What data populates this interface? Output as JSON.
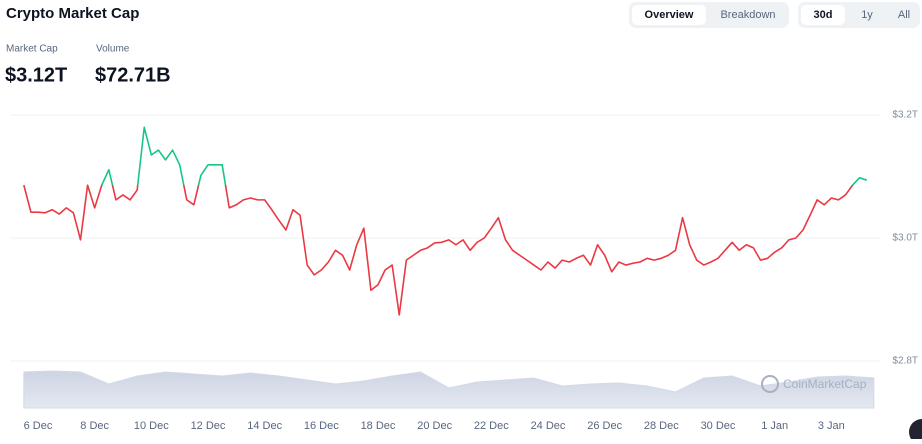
{
  "header": {
    "title": "Crypto Market Cap",
    "tabs": [
      "Overview",
      "Breakdown"
    ],
    "ranges": [
      "30d",
      "1y",
      "All"
    ],
    "stats": [
      {
        "label": "Market Cap",
        "value": "$3.12T"
      },
      {
        "label": "Volume",
        "value": "$72.71B"
      }
    ],
    "watermark": "CoinMarketCap"
  },
  "chart_data": {
    "type": "line",
    "x": [
      5.5,
      5.75,
      6,
      6.25,
      6.5,
      6.75,
      7,
      7.25,
      7.5,
      7.75,
      8,
      8.25,
      8.5,
      8.75,
      9,
      9.25,
      9.5,
      9.75,
      10,
      10.25,
      10.5,
      10.75,
      11,
      11.25,
      11.5,
      11.75,
      12,
      12.25,
      12.5,
      12.75,
      13,
      13.25,
      13.5,
      13.75,
      14,
      14.25,
      14.5,
      14.75,
      15,
      15.25,
      15.5,
      15.75,
      16,
      16.25,
      16.5,
      16.75,
      17,
      17.25,
      17.5,
      17.75,
      18,
      18.25,
      18.5,
      18.75,
      19,
      19.25,
      19.5,
      19.75,
      20,
      20.25,
      20.5,
      20.75,
      21,
      21.25,
      21.5,
      21.75,
      22,
      22.25,
      22.5,
      22.75,
      23,
      23.25,
      23.5,
      23.75,
      24,
      24.25,
      24.5,
      24.75,
      25,
      25.25,
      25.5,
      25.75,
      26,
      26.25,
      26.5,
      26.75,
      27,
      27.25,
      27.5,
      27.75,
      28,
      28.25,
      28.5,
      28.75,
      29,
      29.25,
      29.5,
      29.75,
      30,
      30.25,
      30.5,
      30.75,
      31,
      31.25,
      31.5,
      31.75,
      32,
      32.25,
      32.5,
      32.75,
      33,
      33.25,
      33.5,
      33.75,
      34,
      34.25,
      34.5,
      34.75,
      35,
      35.25
    ],
    "values": [
      3.086,
      3.042,
      3.042,
      3.041,
      3.046,
      3.039,
      3.049,
      3.041,
      2.997,
      3.086,
      3.049,
      3.086,
      3.111,
      3.062,
      3.07,
      3.062,
      3.078,
      3.18,
      3.135,
      3.143,
      3.127,
      3.143,
      3.119,
      3.062,
      3.054,
      3.102,
      3.119,
      3.119,
      3.119,
      3.049,
      3.054,
      3.062,
      3.065,
      3.062,
      3.062,
      3.046,
      3.029,
      3.013,
      3.046,
      3.037,
      2.956,
      2.94,
      2.948,
      2.961,
      2.98,
      2.972,
      2.948,
      2.989,
      3.016,
      2.915,
      2.924,
      2.948,
      2.956,
      2.875,
      2.964,
      2.972,
      2.98,
      2.984,
      2.992,
      2.993,
      2.997,
      2.989,
      2.997,
      2.98,
      2.993,
      3.0,
      3.016,
      3.033,
      2.997,
      2.98,
      2.972,
      2.964,
      2.956,
      2.948,
      2.961,
      2.951,
      2.964,
      2.961,
      2.967,
      2.972,
      2.956,
      2.989,
      2.972,
      2.945,
      2.961,
      2.956,
      2.959,
      2.961,
      2.967,
      2.964,
      2.967,
      2.972,
      2.98,
      3.033,
      2.989,
      2.964,
      2.956,
      2.961,
      2.967,
      2.98,
      2.993,
      2.98,
      2.989,
      2.984,
      2.964,
      2.967,
      2.977,
      2.984,
      2.997,
      3.0,
      3.013,
      3.037,
      3.062,
      3.054,
      3.065,
      3.062,
      3.07,
      3.086,
      3.098,
      3.094
    ],
    "colors": {
      "up": "#16c784",
      "down": "#ea3943"
    },
    "xlim": [
      5.4,
      35.4
    ],
    "ylim": [
      2.8,
      3.22
    ],
    "xticks": [
      {
        "value": 6,
        "label": "6 Dec"
      },
      {
        "value": 8,
        "label": "8 Dec"
      },
      {
        "value": 10,
        "label": "10 Dec"
      },
      {
        "value": 12,
        "label": "12 Dec"
      },
      {
        "value": 14,
        "label": "14 Dec"
      },
      {
        "value": 16,
        "label": "16 Dec"
      },
      {
        "value": 18,
        "label": "18 Dec"
      },
      {
        "value": 20,
        "label": "20 Dec"
      },
      {
        "value": 22,
        "label": "22 Dec"
      },
      {
        "value": 24,
        "label": "24 Dec"
      },
      {
        "value": 26,
        "label": "26 Dec"
      },
      {
        "value": 28,
        "label": "28 Dec"
      },
      {
        "value": 30,
        "label": "30 Dec"
      },
      {
        "value": 32,
        "label": "1 Jan"
      },
      {
        "value": 34,
        "label": "3 Jan"
      }
    ],
    "yticks": [
      {
        "value": 3.2,
        "label": "$3.2T"
      },
      {
        "value": 3.0,
        "label": "$3.0T"
      },
      {
        "value": 2.8,
        "label": "$2.8T"
      }
    ],
    "grid": true,
    "volume": {
      "x": [
        5.5,
        6.5,
        7.5,
        8.5,
        9.5,
        10.5,
        11.5,
        12.5,
        13.5,
        14.5,
        15.5,
        16.5,
        17.5,
        18.5,
        19.5,
        20.5,
        21.5,
        22.5,
        23.5,
        24.5,
        25.5,
        26.5,
        27.5,
        28.5,
        29.5,
        30.5,
        31.5,
        32.5,
        33.5,
        34.5,
        35.5
      ],
      "values": [
        72,
        74,
        72,
        48,
        64,
        72,
        68,
        64,
        70,
        64,
        56,
        48,
        54,
        64,
        72,
        40,
        52,
        56,
        60,
        44,
        48,
        50,
        44,
        32,
        60,
        64,
        44,
        52,
        62,
        64,
        60
      ],
      "ylim": [
        0,
        100
      ],
      "color": "#d3d9e6"
    }
  }
}
